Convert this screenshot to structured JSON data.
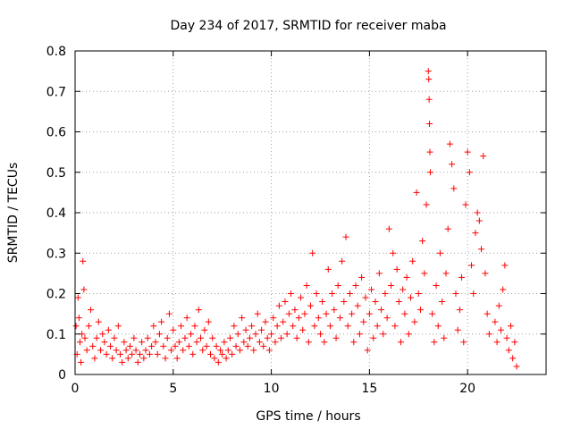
{
  "chart_data": {
    "type": "scatter",
    "title": "Day 234 of 2017, SRMTID for receiver maba",
    "xlabel": "GPS time / hours",
    "ylabel": "SRMTID / TECUs",
    "xlim": [
      0,
      24
    ],
    "ylim": [
      0,
      0.8
    ],
    "x_ticks": [
      0,
      5,
      10,
      15,
      20
    ],
    "y_ticks": [
      0,
      0.1,
      0.2,
      0.3,
      0.4,
      0.5,
      0.6,
      0.7,
      0.8
    ],
    "x_tick_labels": [
      "0",
      "5",
      "10",
      "15",
      "20"
    ],
    "y_tick_labels": [
      "0",
      "0.1",
      "0.2",
      "0.3",
      "0.4",
      "0.5",
      "0.6",
      "0.7",
      "0.8"
    ],
    "grid": true,
    "marker": "plus",
    "color": "#ff0000",
    "series": [
      {
        "points": [
          [
            0.05,
            0.12
          ],
          [
            0.1,
            0.05
          ],
          [
            0.15,
            0.19
          ],
          [
            0.2,
            0.14
          ],
          [
            0.25,
            0.08
          ],
          [
            0.3,
            0.03
          ],
          [
            0.35,
            0.1
          ],
          [
            0.4,
            0.28
          ],
          [
            0.45,
            0.21
          ],
          [
            0.5,
            0.09
          ],
          [
            0.6,
            0.06
          ],
          [
            0.7,
            0.12
          ],
          [
            0.8,
            0.16
          ],
          [
            0.9,
            0.07
          ],
          [
            1.0,
            0.04
          ],
          [
            1.1,
            0.09
          ],
          [
            1.2,
            0.13
          ],
          [
            1.3,
            0.06
          ],
          [
            1.4,
            0.1
          ],
          [
            1.5,
            0.08
          ],
          [
            1.6,
            0.05
          ],
          [
            1.7,
            0.11
          ],
          [
            1.8,
            0.07
          ],
          [
            1.9,
            0.04
          ],
          [
            2.0,
            0.09
          ],
          [
            2.1,
            0.06
          ],
          [
            2.2,
            0.12
          ],
          [
            2.3,
            0.05
          ],
          [
            2.4,
            0.03
          ],
          [
            2.5,
            0.08
          ],
          [
            2.6,
            0.06
          ],
          [
            2.7,
            0.04
          ],
          [
            2.8,
            0.07
          ],
          [
            2.9,
            0.05
          ],
          [
            3.0,
            0.09
          ],
          [
            3.1,
            0.06
          ],
          [
            3.2,
            0.03
          ],
          [
            3.3,
            0.05
          ],
          [
            3.4,
            0.08
          ],
          [
            3.5,
            0.04
          ],
          [
            3.6,
            0.06
          ],
          [
            3.7,
            0.09
          ],
          [
            3.8,
            0.05
          ],
          [
            3.9,
            0.07
          ],
          [
            4.0,
            0.12
          ],
          [
            4.1,
            0.08
          ],
          [
            4.2,
            0.05
          ],
          [
            4.3,
            0.1
          ],
          [
            4.4,
            0.13
          ],
          [
            4.5,
            0.07
          ],
          [
            4.6,
            0.04
          ],
          [
            4.7,
            0.09
          ],
          [
            4.8,
            0.15
          ],
          [
            4.9,
            0.06
          ],
          [
            5.0,
            0.11
          ],
          [
            5.1,
            0.07
          ],
          [
            5.2,
            0.04
          ],
          [
            5.3,
            0.08
          ],
          [
            5.4,
            0.12
          ],
          [
            5.5,
            0.06
          ],
          [
            5.6,
            0.09
          ],
          [
            5.7,
            0.14
          ],
          [
            5.8,
            0.07
          ],
          [
            5.9,
            0.1
          ],
          [
            6.0,
            0.05
          ],
          [
            6.1,
            0.12
          ],
          [
            6.2,
            0.08
          ],
          [
            6.3,
            0.16
          ],
          [
            6.4,
            0.09
          ],
          [
            6.5,
            0.06
          ],
          [
            6.6,
            0.11
          ],
          [
            6.7,
            0.07
          ],
          [
            6.8,
            0.13
          ],
          [
            6.9,
            0.05
          ],
          [
            7.0,
            0.09
          ],
          [
            7.1,
            0.04
          ],
          [
            7.2,
            0.07
          ],
          [
            7.3,
            0.03
          ],
          [
            7.4,
            0.06
          ],
          [
            7.5,
            0.05
          ],
          [
            7.6,
            0.08
          ],
          [
            7.7,
            0.04
          ],
          [
            7.8,
            0.06
          ],
          [
            7.9,
            0.09
          ],
          [
            8.0,
            0.05
          ],
          [
            8.1,
            0.12
          ],
          [
            8.2,
            0.07
          ],
          [
            8.3,
            0.1
          ],
          [
            8.4,
            0.06
          ],
          [
            8.5,
            0.14
          ],
          [
            8.6,
            0.08
          ],
          [
            8.7,
            0.11
          ],
          [
            8.8,
            0.07
          ],
          [
            8.9,
            0.09
          ],
          [
            9.0,
            0.12
          ],
          [
            9.1,
            0.06
          ],
          [
            9.2,
            0.1
          ],
          [
            9.3,
            0.15
          ],
          [
            9.4,
            0.08
          ],
          [
            9.5,
            0.11
          ],
          [
            9.6,
            0.07
          ],
          [
            9.7,
            0.13
          ],
          [
            9.8,
            0.09
          ],
          [
            9.9,
            0.06
          ],
          [
            10.0,
            0.1
          ],
          [
            10.1,
            0.14
          ],
          [
            10.2,
            0.08
          ],
          [
            10.3,
            0.12
          ],
          [
            10.4,
            0.17
          ],
          [
            10.5,
            0.09
          ],
          [
            10.6,
            0.13
          ],
          [
            10.7,
            0.18
          ],
          [
            10.8,
            0.1
          ],
          [
            10.9,
            0.15
          ],
          [
            11.0,
            0.2
          ],
          [
            11.1,
            0.12
          ],
          [
            11.2,
            0.16
          ],
          [
            11.3,
            0.09
          ],
          [
            11.4,
            0.14
          ],
          [
            11.5,
            0.19
          ],
          [
            11.6,
            0.11
          ],
          [
            11.7,
            0.15
          ],
          [
            11.8,
            0.22
          ],
          [
            11.9,
            0.08
          ],
          [
            12.0,
            0.17
          ],
          [
            12.1,
            0.3
          ],
          [
            12.2,
            0.12
          ],
          [
            12.3,
            0.2
          ],
          [
            12.4,
            0.14
          ],
          [
            12.5,
            0.1
          ],
          [
            12.6,
            0.18
          ],
          [
            12.7,
            0.08
          ],
          [
            12.8,
            0.15
          ],
          [
            12.9,
            0.26
          ],
          [
            13.0,
            0.12
          ],
          [
            13.1,
            0.2
          ],
          [
            13.2,
            0.16
          ],
          [
            13.3,
            0.09
          ],
          [
            13.4,
            0.22
          ],
          [
            13.5,
            0.14
          ],
          [
            13.6,
            0.28
          ],
          [
            13.7,
            0.18
          ],
          [
            13.8,
            0.34
          ],
          [
            13.9,
            0.12
          ],
          [
            14.0,
            0.2
          ],
          [
            14.1,
            0.15
          ],
          [
            14.2,
            0.08
          ],
          [
            14.3,
            0.22
          ],
          [
            14.4,
            0.17
          ],
          [
            14.5,
            0.1
          ],
          [
            14.6,
            0.24
          ],
          [
            14.7,
            0.13
          ],
          [
            14.8,
            0.19
          ],
          [
            14.9,
            0.06
          ],
          [
            15.0,
            0.15
          ],
          [
            15.1,
            0.21
          ],
          [
            15.2,
            0.09
          ],
          [
            15.3,
            0.18
          ],
          [
            15.4,
            0.12
          ],
          [
            15.5,
            0.25
          ],
          [
            15.6,
            0.16
          ],
          [
            15.7,
            0.1
          ],
          [
            15.8,
            0.2
          ],
          [
            15.9,
            0.14
          ],
          [
            16.0,
            0.36
          ],
          [
            16.1,
            0.22
          ],
          [
            16.2,
            0.3
          ],
          [
            16.3,
            0.12
          ],
          [
            16.4,
            0.26
          ],
          [
            16.5,
            0.18
          ],
          [
            16.6,
            0.08
          ],
          [
            16.7,
            0.21
          ],
          [
            16.8,
            0.15
          ],
          [
            16.9,
            0.24
          ],
          [
            17.0,
            0.1
          ],
          [
            17.1,
            0.19
          ],
          [
            17.2,
            0.28
          ],
          [
            17.3,
            0.13
          ],
          [
            17.4,
            0.45
          ],
          [
            17.5,
            0.2
          ],
          [
            17.6,
            0.16
          ],
          [
            17.7,
            0.33
          ],
          [
            17.8,
            0.25
          ],
          [
            17.9,
            0.42
          ],
          [
            18.0,
            0.75
          ],
          [
            18.02,
            0.73
          ],
          [
            18.04,
            0.68
          ],
          [
            18.06,
            0.62
          ],
          [
            18.08,
            0.55
          ],
          [
            18.1,
            0.5
          ],
          [
            18.2,
            0.15
          ],
          [
            18.3,
            0.08
          ],
          [
            18.4,
            0.22
          ],
          [
            18.5,
            0.12
          ],
          [
            18.6,
            0.3
          ],
          [
            18.7,
            0.18
          ],
          [
            18.8,
            0.09
          ],
          [
            18.9,
            0.25
          ],
          [
            19.0,
            0.36
          ],
          [
            19.1,
            0.57
          ],
          [
            19.2,
            0.52
          ],
          [
            19.3,
            0.46
          ],
          [
            19.4,
            0.2
          ],
          [
            19.5,
            0.11
          ],
          [
            19.6,
            0.16
          ],
          [
            19.7,
            0.24
          ],
          [
            19.8,
            0.08
          ],
          [
            19.9,
            0.42
          ],
          [
            20.0,
            0.55
          ],
          [
            20.1,
            0.5
          ],
          [
            20.2,
            0.27
          ],
          [
            20.3,
            0.2
          ],
          [
            20.4,
            0.35
          ],
          [
            20.5,
            0.4
          ],
          [
            20.6,
            0.38
          ],
          [
            20.7,
            0.31
          ],
          [
            20.8,
            0.54
          ],
          [
            20.9,
            0.25
          ],
          [
            21.0,
            0.15
          ],
          [
            21.1,
            0.1
          ],
          [
            21.4,
            0.13
          ],
          [
            21.5,
            0.08
          ],
          [
            21.6,
            0.17
          ],
          [
            21.7,
            0.11
          ],
          [
            21.8,
            0.21
          ],
          [
            21.9,
            0.27
          ],
          [
            22.0,
            0.09
          ],
          [
            22.1,
            0.06
          ],
          [
            22.2,
            0.12
          ],
          [
            22.3,
            0.04
          ],
          [
            22.4,
            0.08
          ],
          [
            22.5,
            0.02
          ]
        ]
      }
    ]
  }
}
